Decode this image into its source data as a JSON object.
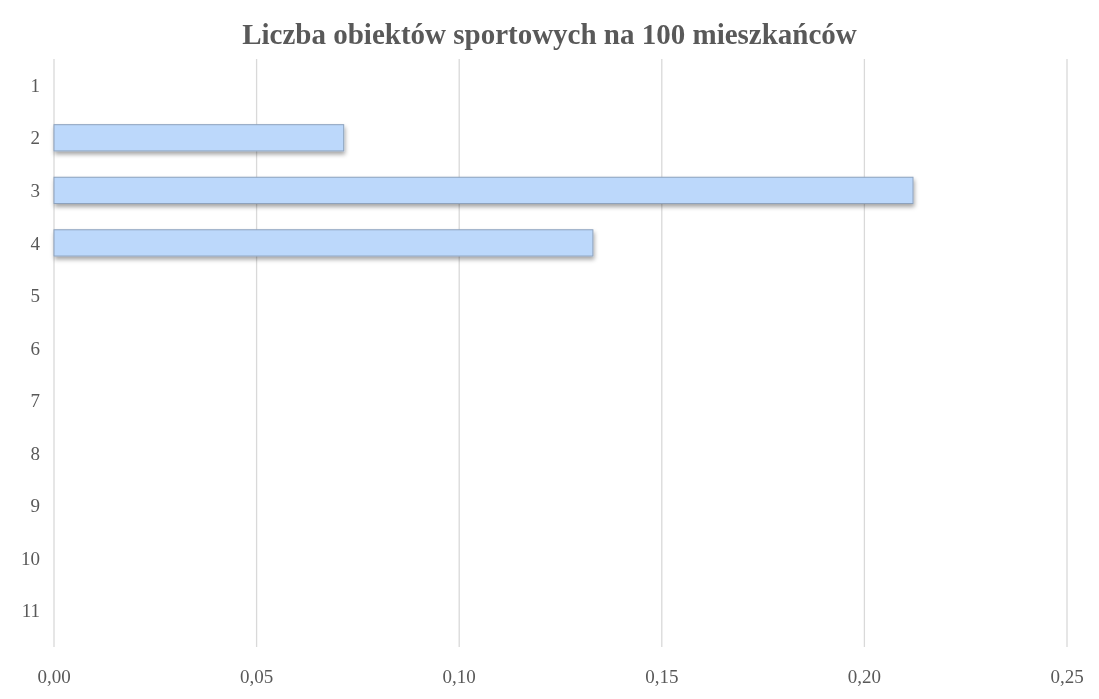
{
  "chart_data": {
    "type": "bar",
    "orientation": "horizontal",
    "title": "Liczba obiektów sportowych na 100 mieszkańców",
    "categories": [
      "1",
      "2",
      "3",
      "4",
      "5",
      "6",
      "7",
      "8",
      "9",
      "10",
      "11"
    ],
    "values": [
      null,
      0.0715,
      0.212,
      0.133,
      null,
      null,
      null,
      null,
      null,
      null,
      null
    ],
    "color": "#bcd8fb",
    "xlim": [
      0,
      0.25
    ],
    "xticks": [
      {
        "value": 0,
        "label": "0,00"
      },
      {
        "value": 0.05,
        "label": "0,05"
      },
      {
        "value": 0.1,
        "label": "0,10"
      },
      {
        "value": 0.15,
        "label": "0,15"
      },
      {
        "value": 0.2,
        "label": "0,20"
      },
      {
        "value": 0.25,
        "label": "0,25"
      }
    ],
    "grid": "x"
  }
}
